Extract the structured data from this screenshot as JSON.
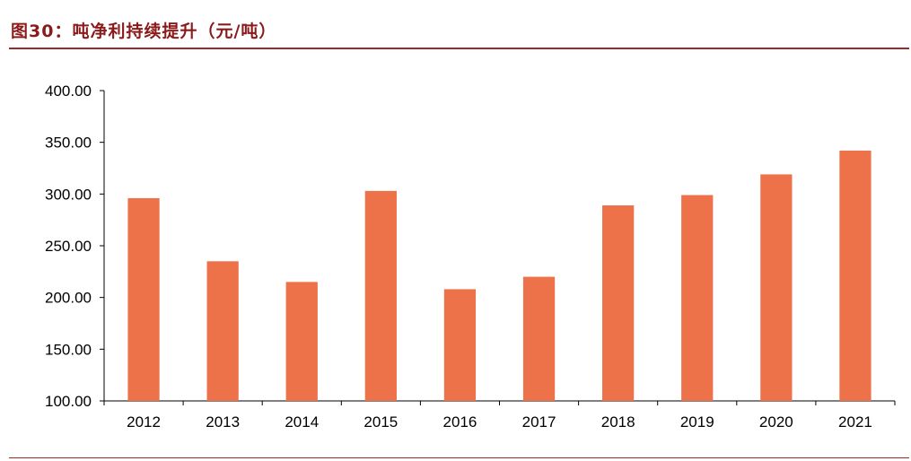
{
  "figure": {
    "title": "图30：吨净利持续提升（元/吨）"
  },
  "colors": {
    "bar": "#ed7149",
    "title": "#8b1a1a",
    "rule": "#9b2a2a",
    "axis": "#000000"
  },
  "chart_data": {
    "type": "bar",
    "title": "",
    "xlabel": "",
    "ylabel": "",
    "categories": [
      "2012",
      "2013",
      "2014",
      "2015",
      "2016",
      "2017",
      "2018",
      "2019",
      "2020",
      "2021"
    ],
    "values": [
      296,
      235,
      215,
      303,
      208,
      220,
      289,
      299,
      319,
      342
    ],
    "ylim": [
      100,
      400
    ],
    "yticks": [
      "100.00",
      "150.00",
      "200.00",
      "250.00",
      "300.00",
      "350.00",
      "400.00"
    ],
    "grid": false,
    "legend": "none"
  }
}
